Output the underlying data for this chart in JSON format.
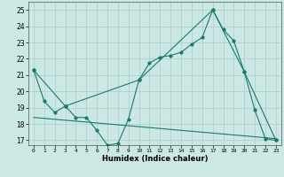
{
  "xlabel": "Humidex (Indice chaleur)",
  "bg_color": "#cce8e5",
  "grid_color": "#aaccca",
  "line_color": "#1a7a6a",
  "xlim": [
    -0.5,
    23.5
  ],
  "ylim": [
    16.7,
    25.5
  ],
  "yticks": [
    17,
    18,
    19,
    20,
    21,
    22,
    23,
    24,
    25
  ],
  "xticks": [
    0,
    1,
    2,
    3,
    4,
    5,
    6,
    7,
    8,
    9,
    10,
    11,
    12,
    13,
    14,
    15,
    16,
    17,
    18,
    19,
    20,
    21,
    22,
    23
  ],
  "line1_x": [
    0,
    1,
    2,
    3,
    4,
    5,
    6,
    7,
    8,
    9,
    10,
    11,
    12,
    13,
    14,
    15,
    16,
    17,
    18,
    19,
    20,
    21,
    22,
    23
  ],
  "line1_y": [
    21.3,
    19.4,
    18.7,
    19.1,
    18.4,
    18.4,
    17.6,
    16.7,
    16.8,
    18.3,
    20.7,
    21.75,
    22.1,
    22.2,
    22.4,
    22.9,
    23.3,
    25.0,
    23.8,
    23.1,
    21.2,
    18.85,
    17.1,
    17.0
  ],
  "line2_x": [
    0,
    3,
    10,
    17,
    20,
    23
  ],
  "line2_y": [
    21.3,
    19.1,
    20.7,
    25.0,
    21.2,
    17.0
  ],
  "line3_x": [
    0,
    23
  ],
  "line3_y": [
    18.4,
    17.1
  ]
}
